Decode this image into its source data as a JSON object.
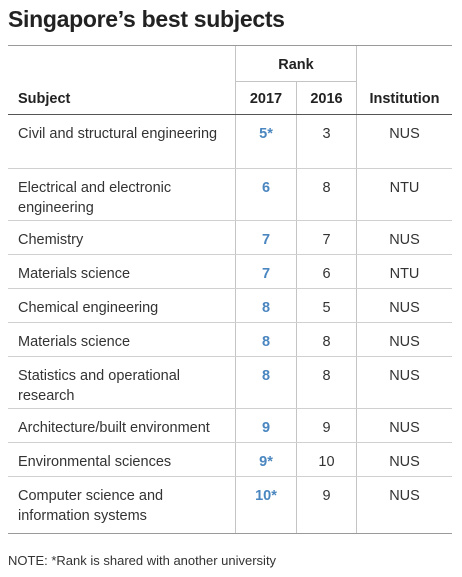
{
  "title": "Singapore’s best subjects",
  "headers": {
    "rank_group": "Rank",
    "subject": "Subject",
    "y2017": "2017",
    "y2016": "2016",
    "institution": "Institution"
  },
  "rows": [
    {
      "subject": "Civil and structural engineering",
      "rank_2017": "5*",
      "rank_2016": "3",
      "institution": "NUS"
    },
    {
      "subject": "Electrical and electronic engineering",
      "rank_2017": "6",
      "rank_2016": "8",
      "institution": "NTU"
    },
    {
      "subject": "Chemistry",
      "rank_2017": "7",
      "rank_2016": "7",
      "institution": "NUS"
    },
    {
      "subject": "Materials science",
      "rank_2017": "7",
      "rank_2016": "6",
      "institution": "NTU"
    },
    {
      "subject": "Chemical engineering",
      "rank_2017": "8",
      "rank_2016": "5",
      "institution": "NUS"
    },
    {
      "subject": "Materials science",
      "rank_2017": "8",
      "rank_2016": "8",
      "institution": "NUS"
    },
    {
      "subject": "Statistics and operational research",
      "rank_2017": "8",
      "rank_2016": "8",
      "institution": "NUS"
    },
    {
      "subject": "Architecture/built environment",
      "rank_2017": "9",
      "rank_2016": "9",
      "institution": "NUS"
    },
    {
      "subject": "Environmental sciences",
      "rank_2017": "9*",
      "rank_2016": "10",
      "institution": "NUS"
    },
    {
      "subject": "Computer science and information systems",
      "rank_2017": "10*",
      "rank_2016": "9",
      "institution": "NUS"
    }
  ],
  "note": "NOTE: *Rank is shared with another university",
  "colors": {
    "rank_2017_accent": "#4a86c0",
    "rule": "#9a9a9a"
  }
}
